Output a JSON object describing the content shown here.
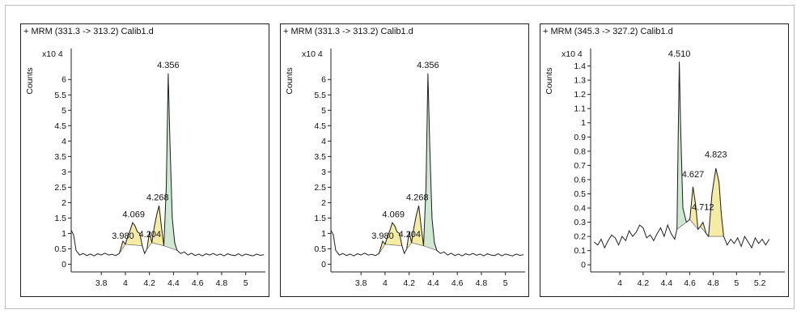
{
  "chart_data": [
    {
      "type": "line",
      "title": "+ MRM (331.3 -> 313.2) Calib1.d",
      "ylabel": "Counts",
      "y_multiplier": "x10 4",
      "xlim": [
        3.55,
        5.15
      ],
      "ylim": [
        -0.25,
        6.9
      ],
      "x_ticks": [
        3.8,
        4,
        4.2,
        4.4,
        4.6,
        4.8,
        5
      ],
      "x_tick_labels": [
        "3.8",
        "4",
        "4.2",
        "4.4",
        "4.6",
        "4.8",
        "5"
      ],
      "y_ticks": [
        0,
        0.5,
        1,
        1.5,
        2,
        2.5,
        3,
        3.5,
        4,
        4.5,
        5,
        5.5,
        6
      ],
      "y_tick_labels": [
        "0",
        "0.5",
        "1",
        "1.5",
        "2",
        "2.5",
        "3",
        "3.5",
        "4",
        "4.5",
        "5",
        "5.5",
        "6"
      ],
      "trace": [
        [
          3.55,
          1.1
        ],
        [
          3.57,
          0.95
        ],
        [
          3.59,
          0.45
        ],
        [
          3.62,
          0.3
        ],
        [
          3.65,
          0.35
        ],
        [
          3.68,
          0.28
        ],
        [
          3.71,
          0.33
        ],
        [
          3.74,
          0.27
        ],
        [
          3.77,
          0.34
        ],
        [
          3.8,
          0.3
        ],
        [
          3.83,
          0.36
        ],
        [
          3.86,
          0.3
        ],
        [
          3.89,
          0.32
        ],
        [
          3.92,
          0.28
        ],
        [
          3.95,
          0.35
        ],
        [
          3.98,
          0.75
        ],
        [
          4.0,
          0.65
        ],
        [
          4.02,
          0.9
        ],
        [
          4.04,
          1.1
        ],
        [
          4.06,
          1.35
        ],
        [
          4.08,
          1.25
        ],
        [
          4.1,
          1.05
        ],
        [
          4.12,
          1.0
        ],
        [
          4.14,
          0.6
        ],
        [
          4.16,
          0.35
        ],
        [
          4.18,
          0.5
        ],
        [
          4.2,
          1.05
        ],
        [
          4.22,
          0.7
        ],
        [
          4.24,
          1.2
        ],
        [
          4.26,
          1.6
        ],
        [
          4.28,
          1.9
        ],
        [
          4.3,
          1.2
        ],
        [
          4.32,
          0.6
        ],
        [
          4.34,
          2.5
        ],
        [
          4.356,
          6.2
        ],
        [
          4.37,
          4.0
        ],
        [
          4.39,
          1.5
        ],
        [
          4.41,
          0.7
        ],
        [
          4.43,
          0.45
        ],
        [
          4.46,
          0.35
        ],
        [
          4.49,
          0.4
        ],
        [
          4.52,
          0.3
        ],
        [
          4.55,
          0.36
        ],
        [
          4.58,
          0.28
        ],
        [
          4.61,
          0.33
        ],
        [
          4.64,
          0.27
        ],
        [
          4.67,
          0.34
        ],
        [
          4.7,
          0.3
        ],
        [
          4.73,
          0.35
        ],
        [
          4.76,
          0.29
        ],
        [
          4.79,
          0.33
        ],
        [
          4.82,
          0.27
        ],
        [
          4.85,
          0.34
        ],
        [
          4.88,
          0.3
        ],
        [
          4.91,
          0.28
        ],
        [
          4.94,
          0.34
        ],
        [
          4.97,
          0.27
        ],
        [
          5.0,
          0.33
        ],
        [
          5.03,
          0.3
        ],
        [
          5.06,
          0.27
        ],
        [
          5.09,
          0.33
        ],
        [
          5.12,
          0.29
        ],
        [
          5.15,
          0.31
        ]
      ],
      "peaks": [
        {
          "label": "3.980",
          "rt": 3.98,
          "start": 3.95,
          "end": 4.0,
          "apex": 0.78,
          "color": "#f4eca2",
          "label_y": 0.75
        },
        {
          "label": "4.069",
          "rt": 4.069,
          "start": 4.0,
          "end": 4.14,
          "apex": 1.35,
          "color": "#f4eca2",
          "label_y": 1.45
        },
        {
          "label": "4.204",
          "rt": 4.204,
          "start": 4.18,
          "end": 4.22,
          "apex": 1.05,
          "color": "#f4eca2",
          "label_y": 0.8
        },
        {
          "label": "4.268",
          "rt": 4.268,
          "start": 4.22,
          "end": 4.32,
          "apex": 1.9,
          "color": "#f4eca2",
          "label_y": 2.0
        },
        {
          "label": "4.356",
          "rt": 4.356,
          "start": 4.32,
          "end": 4.43,
          "apex": 6.2,
          "color": "#cfe8d2",
          "label_y": 6.3
        }
      ]
    },
    {
      "type": "line",
      "title": "+ MRM (331.3 -> 313.2) Calib1.d",
      "ylabel": "Counts",
      "y_multiplier": "x10 4",
      "xlim": [
        3.55,
        5.15
      ],
      "ylim": [
        -0.25,
        6.9
      ],
      "x_ticks": [
        3.8,
        4,
        4.2,
        4.4,
        4.6,
        4.8,
        5
      ],
      "x_tick_labels": [
        "3.8",
        "4",
        "4.2",
        "4.4",
        "4.6",
        "4.8",
        "5"
      ],
      "y_ticks": [
        0,
        0.5,
        1,
        1.5,
        2,
        2.5,
        3,
        3.5,
        4,
        4.5,
        5,
        5.5,
        6
      ],
      "y_tick_labels": [
        "0",
        "0.5",
        "1",
        "1.5",
        "2",
        "2.5",
        "3",
        "3.5",
        "4",
        "4.5",
        "5",
        "5.5",
        "6"
      ],
      "trace": [
        [
          3.55,
          1.1
        ],
        [
          3.57,
          0.95
        ],
        [
          3.59,
          0.45
        ],
        [
          3.62,
          0.3
        ],
        [
          3.65,
          0.35
        ],
        [
          3.68,
          0.28
        ],
        [
          3.71,
          0.33
        ],
        [
          3.74,
          0.27
        ],
        [
          3.77,
          0.34
        ],
        [
          3.8,
          0.3
        ],
        [
          3.83,
          0.36
        ],
        [
          3.86,
          0.3
        ],
        [
          3.89,
          0.32
        ],
        [
          3.92,
          0.28
        ],
        [
          3.95,
          0.35
        ],
        [
          3.98,
          0.75
        ],
        [
          4.0,
          0.65
        ],
        [
          4.02,
          0.9
        ],
        [
          4.04,
          1.1
        ],
        [
          4.06,
          1.35
        ],
        [
          4.08,
          1.25
        ],
        [
          4.1,
          1.05
        ],
        [
          4.12,
          1.0
        ],
        [
          4.14,
          0.6
        ],
        [
          4.16,
          0.35
        ],
        [
          4.18,
          0.5
        ],
        [
          4.2,
          1.05
        ],
        [
          4.22,
          0.7
        ],
        [
          4.24,
          1.2
        ],
        [
          4.26,
          1.6
        ],
        [
          4.28,
          1.9
        ],
        [
          4.3,
          1.2
        ],
        [
          4.32,
          0.6
        ],
        [
          4.34,
          2.5
        ],
        [
          4.356,
          6.2
        ],
        [
          4.37,
          4.0
        ],
        [
          4.39,
          1.5
        ],
        [
          4.41,
          0.7
        ],
        [
          4.43,
          0.45
        ],
        [
          4.46,
          0.35
        ],
        [
          4.49,
          0.4
        ],
        [
          4.52,
          0.3
        ],
        [
          4.55,
          0.36
        ],
        [
          4.58,
          0.28
        ],
        [
          4.61,
          0.33
        ],
        [
          4.64,
          0.27
        ],
        [
          4.67,
          0.34
        ],
        [
          4.7,
          0.3
        ],
        [
          4.73,
          0.35
        ],
        [
          4.76,
          0.29
        ],
        [
          4.79,
          0.33
        ],
        [
          4.82,
          0.27
        ],
        [
          4.85,
          0.34
        ],
        [
          4.88,
          0.3
        ],
        [
          4.91,
          0.28
        ],
        [
          4.94,
          0.34
        ],
        [
          4.97,
          0.27
        ],
        [
          5.0,
          0.33
        ],
        [
          5.03,
          0.3
        ],
        [
          5.06,
          0.27
        ],
        [
          5.09,
          0.33
        ],
        [
          5.12,
          0.29
        ],
        [
          5.15,
          0.31
        ]
      ],
      "peaks": [
        {
          "label": "3.980",
          "rt": 3.98,
          "start": 3.95,
          "end": 4.0,
          "apex": 0.78,
          "color": "#f4eca2",
          "label_y": 0.75
        },
        {
          "label": "4.069",
          "rt": 4.069,
          "start": 4.0,
          "end": 4.14,
          "apex": 1.35,
          "color": "#f4eca2",
          "label_y": 1.45
        },
        {
          "label": "4.204",
          "rt": 4.204,
          "start": 4.18,
          "end": 4.22,
          "apex": 1.05,
          "color": "#f4eca2",
          "label_y": 0.8
        },
        {
          "label": "4.268",
          "rt": 4.268,
          "start": 4.22,
          "end": 4.32,
          "apex": 1.9,
          "color": "#f4eca2",
          "label_y": 2.0
        },
        {
          "label": "4.356",
          "rt": 4.356,
          "start": 4.32,
          "end": 4.43,
          "apex": 6.2,
          "color": "#cfe8d2",
          "label_y": 6.3
        }
      ]
    },
    {
      "type": "line",
      "title": "+ MRM (345.3 -> 327.2) Calib1.d",
      "ylabel": "Counts",
      "y_multiplier": "x10 4",
      "xlim": [
        3.75,
        5.4
      ],
      "ylim": [
        -0.05,
        1.5
      ],
      "x_ticks": [
        4,
        4.2,
        4.4,
        4.6,
        4.8,
        5,
        5.2
      ],
      "x_tick_labels": [
        "4",
        "4.2",
        "4.4",
        "4.6",
        "4.8",
        "5",
        "5.2"
      ],
      "y_ticks": [
        0,
        0.1,
        0.2,
        0.3,
        0.4,
        0.5,
        0.6,
        0.7,
        0.8,
        0.9,
        1,
        1.1,
        1.2,
        1.3,
        1.4
      ],
      "y_tick_labels": [
        "0",
        "0.1",
        "0.2",
        "0.3",
        "0.4",
        "0.5",
        "0.6",
        "0.7",
        "0.8",
        "0.9",
        "1",
        "1.1",
        "1.2",
        "1.3",
        "1.4"
      ],
      "trace": [
        [
          3.78,
          0.16
        ],
        [
          3.81,
          0.14
        ],
        [
          3.84,
          0.18
        ],
        [
          3.87,
          0.12
        ],
        [
          3.9,
          0.17
        ],
        [
          3.93,
          0.21
        ],
        [
          3.96,
          0.19
        ],
        [
          3.99,
          0.14
        ],
        [
          4.02,
          0.2
        ],
        [
          4.05,
          0.17
        ],
        [
          4.08,
          0.24
        ],
        [
          4.11,
          0.2
        ],
        [
          4.14,
          0.23
        ],
        [
          4.17,
          0.28
        ],
        [
          4.2,
          0.26
        ],
        [
          4.23,
          0.19
        ],
        [
          4.26,
          0.21
        ],
        [
          4.29,
          0.17
        ],
        [
          4.32,
          0.22
        ],
        [
          4.35,
          0.26
        ],
        [
          4.38,
          0.2
        ],
        [
          4.41,
          0.28
        ],
        [
          4.44,
          0.22
        ],
        [
          4.47,
          0.18
        ],
        [
          4.49,
          0.25
        ],
        [
          4.5,
          0.9
        ],
        [
          4.51,
          1.43
        ],
        [
          4.52,
          1.0
        ],
        [
          4.54,
          0.4
        ],
        [
          4.57,
          0.3
        ],
        [
          4.6,
          0.32
        ],
        [
          4.627,
          0.55
        ],
        [
          4.65,
          0.42
        ],
        [
          4.67,
          0.25
        ],
        [
          4.69,
          0.27
        ],
        [
          4.712,
          0.3
        ],
        [
          4.74,
          0.22
        ],
        [
          4.76,
          0.2
        ],
        [
          4.79,
          0.5
        ],
        [
          4.823,
          0.68
        ],
        [
          4.85,
          0.58
        ],
        [
          4.87,
          0.35
        ],
        [
          4.89,
          0.2
        ],
        [
          4.92,
          0.14
        ],
        [
          4.95,
          0.18
        ],
        [
          4.98,
          0.15
        ],
        [
          5.01,
          0.19
        ],
        [
          5.04,
          0.13
        ],
        [
          5.07,
          0.2
        ],
        [
          5.1,
          0.16
        ],
        [
          5.13,
          0.12
        ],
        [
          5.16,
          0.19
        ],
        [
          5.19,
          0.15
        ],
        [
          5.22,
          0.18
        ],
        [
          5.25,
          0.14
        ],
        [
          5.28,
          0.18
        ]
      ],
      "peaks": [
        {
          "label": "4.510",
          "rt": 4.51,
          "start": 4.49,
          "end": 4.57,
          "apex": 1.43,
          "color": "#cfe8d2",
          "label_y": 1.45
        },
        {
          "label": "4.627",
          "rt": 4.627,
          "start": 4.6,
          "end": 4.67,
          "apex": 0.55,
          "color": "#f4eca2",
          "label_y": 0.6
        },
        {
          "label": "4.712",
          "rt": 4.712,
          "start": 4.69,
          "end": 4.74,
          "apex": 0.3,
          "color": "#f4eca2",
          "label_y": 0.37
        },
        {
          "label": "4.823",
          "rt": 4.823,
          "start": 4.76,
          "end": 4.89,
          "apex": 0.68,
          "color": "#f4eca2",
          "label_y": 0.74
        }
      ]
    }
  ]
}
